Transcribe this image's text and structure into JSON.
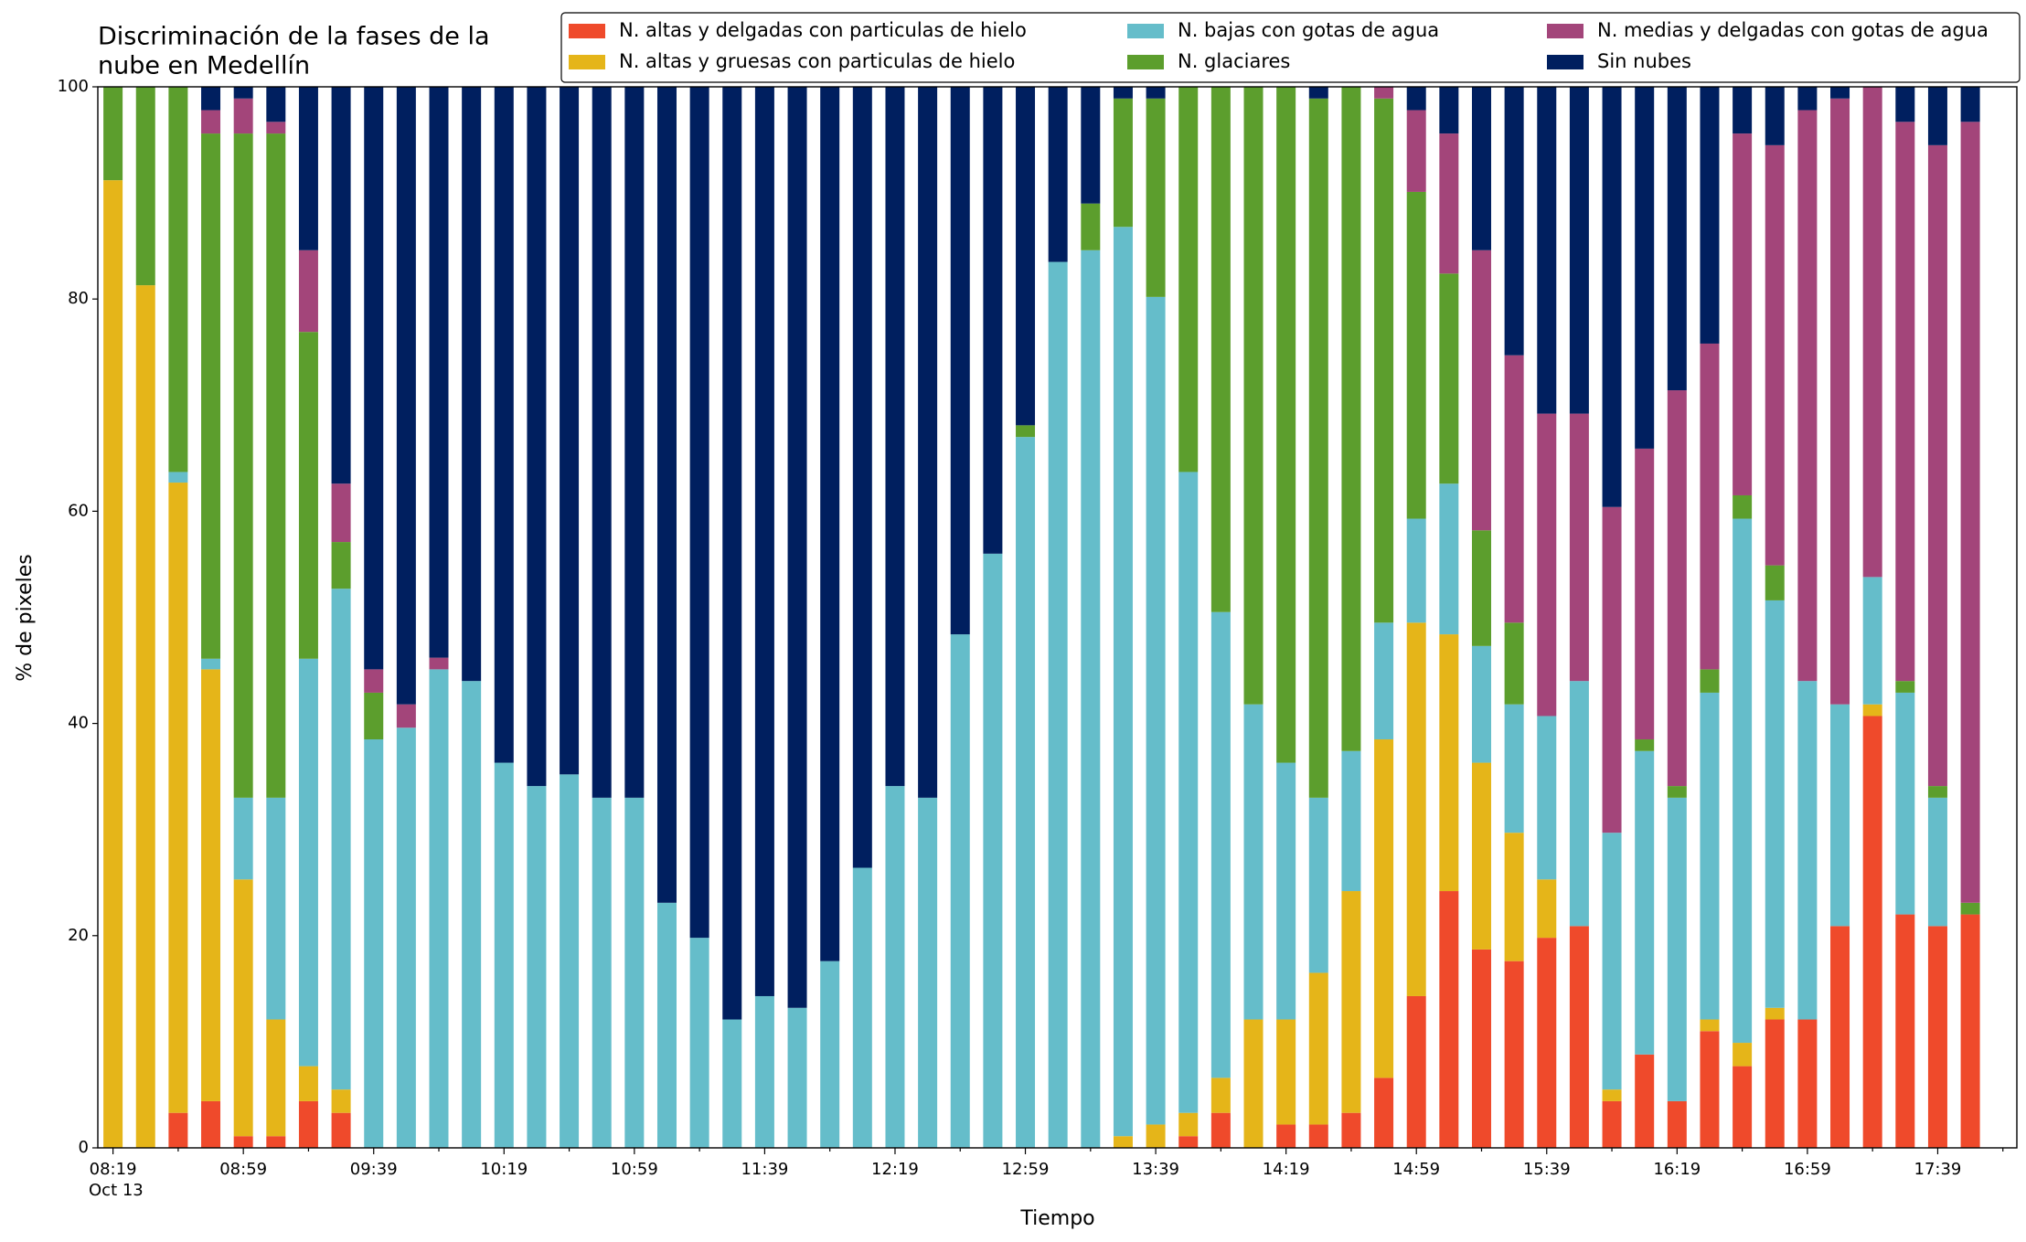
{
  "chart_data": {
    "type": "stacked_bar",
    "title": [
      "Discriminación de la fases de la",
      "nube en Medellín"
    ],
    "xlabel": "Tiempo",
    "ylabel": "% de pixeles",
    "date_label": "Oct 13",
    "categories": [
      "08:19",
      null,
      null,
      null,
      "08:59",
      null,
      null,
      null,
      "09:39",
      null,
      null,
      null,
      "10:19",
      null,
      null,
      null,
      "10:59",
      null,
      null,
      null,
      "11:39",
      null,
      null,
      null,
      "12:19",
      null,
      null,
      null,
      "12:59",
      null,
      null,
      null,
      "13:39",
      null,
      null,
      null,
      "14:19",
      null,
      null,
      null,
      "14:59",
      null,
      null,
      null,
      "15:39",
      null,
      null,
      null,
      "16:19",
      null,
      null,
      null,
      "16:59",
      null,
      null,
      null,
      "17:39",
      null
    ],
    "ylim": [
      0,
      100
    ],
    "yticks": [
      0,
      20,
      40,
      60,
      80,
      100
    ],
    "grid": false,
    "legend": "top",
    "series": [
      {
        "name": "N. altas y delgadas con particulas de hielo",
        "color": "#ef4a2b",
        "values": [
          0,
          0,
          3.3,
          4.4,
          1.1,
          1.1,
          4.4,
          3.3,
          0,
          0,
          0,
          0,
          0,
          0,
          0,
          0,
          0,
          0,
          0,
          0,
          0,
          0,
          0,
          0,
          0,
          0,
          0,
          0,
          0,
          0,
          0,
          0,
          0,
          1.1,
          3.3,
          0,
          2.2,
          2.2,
          3.3,
          6.6,
          14.3,
          24.2,
          18.7,
          17.6,
          19.8,
          20.9,
          4.4,
          8.8,
          4.4,
          11,
          7.7,
          12.1,
          12.1,
          20.9,
          40.7,
          22,
          20.9,
          22
        ]
      },
      {
        "name": "N. altas y gruesas con particulas de hielo",
        "color": "#e5b519",
        "values": [
          91.2,
          81.3,
          59.4,
          40.7,
          24.2,
          11,
          3.3,
          2.2,
          0,
          0,
          0,
          0,
          0,
          0,
          0,
          0,
          0,
          0,
          0,
          0,
          0,
          0,
          0,
          0,
          0,
          0,
          0,
          0,
          0,
          0,
          0,
          1.1,
          2.2,
          2.2,
          3.3,
          12.1,
          9.9,
          14.3,
          20.9,
          31.9,
          35.2,
          24.2,
          17.6,
          12.1,
          5.5,
          0,
          1.1,
          0,
          0,
          1.1,
          2.2,
          1.1,
          0,
          0,
          1.1,
          0,
          0,
          0
        ]
      },
      {
        "name": "N. bajas con gotas de agua",
        "color": "#65bdca",
        "values": [
          0,
          0,
          1,
          1,
          7.7,
          20.9,
          38.4,
          47.2,
          38.5,
          39.6,
          45.1,
          44,
          36.3,
          34.1,
          35.2,
          33,
          33,
          23.1,
          19.8,
          12.1,
          14.3,
          13.2,
          17.6,
          26.4,
          34.1,
          33,
          48.4,
          56,
          67,
          83.5,
          84.6,
          85.7,
          78,
          60.4,
          43.9,
          29.7,
          24.2,
          16.5,
          13.2,
          11,
          9.8,
          14.2,
          11,
          12.1,
          15.4,
          23.1,
          24.2,
          28.6,
          28.6,
          30.8,
          49.4,
          38.4,
          31.9,
          20.9,
          12,
          20.9,
          12.1,
          0
        ]
      },
      {
        "name": "N. glaciares",
        "color": "#5c9e2d",
        "values": [
          8.8,
          18.7,
          36.3,
          49.5,
          62.6,
          62.6,
          30.8,
          4.4,
          4.4,
          0,
          0,
          0,
          0,
          0,
          0,
          0,
          0,
          0,
          0,
          0,
          0,
          0,
          0,
          0,
          0,
          0,
          0,
          0,
          1.1,
          0,
          4.4,
          12.1,
          18.7,
          36.3,
          49.5,
          58.2,
          63.7,
          65.9,
          62.6,
          49.4,
          30.8,
          19.8,
          10.9,
          7.7,
          0,
          0,
          0,
          1.1,
          1.1,
          2.2,
          2.2,
          3.3,
          0,
          0,
          0,
          1.1,
          1.1,
          1.1
        ]
      },
      {
        "name": "N. medias y delgadas con gotas de agua",
        "color": "#a3457a",
        "values": [
          0,
          0,
          0,
          2.2,
          3.3,
          1.1,
          7.7,
          5.5,
          2.2,
          2.2,
          1.1,
          0,
          0,
          0,
          0,
          0,
          0,
          0,
          0,
          0,
          0,
          0,
          0,
          0,
          0,
          0,
          0,
          0,
          0,
          0,
          0,
          0,
          0,
          0,
          0,
          0,
          0,
          0,
          0,
          1.1,
          7.7,
          13.2,
          26.4,
          25.2,
          28.5,
          25.2,
          30.7,
          27.4,
          37.3,
          30.7,
          34.1,
          39.6,
          53.8,
          57.1,
          46.2,
          52.7,
          60.4,
          73.6
        ]
      },
      {
        "name": "Sin nubes",
        "color": "#001f5f",
        "values": [
          0,
          0,
          0,
          2.2,
          1.1,
          3.3,
          15.4,
          37.4,
          54.9,
          58.2,
          53.8,
          56,
          63.7,
          65.9,
          64.8,
          67,
          67,
          76.9,
          80.2,
          87.9,
          85.7,
          86.8,
          82.4,
          73.6,
          65.9,
          67,
          51.6,
          44,
          31.9,
          16.5,
          11,
          1.1,
          1.1,
          0,
          0,
          0,
          0,
          1.1,
          0,
          0,
          2.2,
          4.4,
          15.4,
          25.3,
          30.8,
          30.8,
          39.6,
          34.1,
          28.6,
          24.2,
          4.4,
          5.5,
          2.2,
          1.1,
          0,
          3.3,
          5.5,
          3.3
        ]
      }
    ]
  }
}
